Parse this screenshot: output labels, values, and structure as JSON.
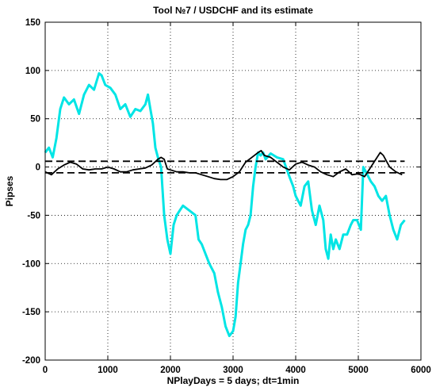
{
  "chart_data": {
    "type": "line",
    "title": "Tool  №7 / USDCHF and its estimate",
    "xlabel": "NPlayDays = 5 days;  dt=1min",
    "ylabel": "Pipses",
    "xlim": [
      0,
      6000
    ],
    "ylim": [
      -200,
      150
    ],
    "xticks": [
      0,
      1000,
      2000,
      3000,
      4000,
      5000,
      6000
    ],
    "yticks": [
      -200,
      -150,
      -100,
      -50,
      0,
      50,
      100,
      150
    ],
    "grid": true,
    "series": [
      {
        "color": "#00e5e5",
        "style": "solid",
        "x": [
          0,
          60,
          120,
          180,
          240,
          300,
          380,
          460,
          540,
          620,
          700,
          780,
          860,
          900,
          960,
          1040,
          1120,
          1200,
          1280,
          1360,
          1440,
          1520,
          1600,
          1640,
          1680,
          1720,
          1760,
          1800,
          1850,
          1900,
          1950,
          2000,
          2050,
          2100,
          2150,
          2200,
          2300,
          2400,
          2450,
          2500,
          2560,
          2620,
          2700,
          2760,
          2820,
          2880,
          2940,
          3000,
          3040,
          3080,
          3120,
          3160,
          3200,
          3240,
          3280,
          3320,
          3360,
          3400,
          3440,
          3480,
          3520,
          3600,
          3700,
          3800,
          3900,
          3960,
          4000,
          4080,
          4140,
          4200,
          4260,
          4320,
          4380,
          4440,
          4480,
          4520,
          4560,
          4600,
          4640,
          4700,
          4760,
          4820,
          4880,
          4920,
          4980,
          5040,
          5080,
          5120,
          5160,
          5200,
          5260,
          5320,
          5380,
          5440,
          5500,
          5560,
          5620,
          5680,
          5740
        ],
        "y": [
          15,
          20,
          10,
          30,
          60,
          72,
          65,
          70,
          55,
          75,
          85,
          80,
          97,
          95,
          85,
          82,
          75,
          60,
          65,
          52,
          60,
          58,
          65,
          75,
          60,
          45,
          20,
          10,
          0,
          -50,
          -75,
          -90,
          -60,
          -50,
          -45,
          -40,
          -45,
          -50,
          -75,
          -80,
          -90,
          -100,
          -110,
          -130,
          -145,
          -165,
          -175,
          -170,
          -155,
          -120,
          -100,
          -80,
          -65,
          -60,
          -50,
          -20,
          0,
          15,
          12,
          15,
          8,
          14,
          10,
          8,
          -10,
          -20,
          -30,
          -40,
          -20,
          -15,
          -45,
          -60,
          -40,
          -55,
          -85,
          -95,
          -70,
          -85,
          -75,
          -85,
          -70,
          -70,
          -60,
          -55,
          -55,
          -65,
          0,
          -5,
          -10,
          -15,
          -20,
          -30,
          -35,
          -30,
          -50,
          -65,
          -75,
          -60,
          -55
        ]
      },
      {
        "color": "#000000",
        "style": "solid",
        "x": [
          0,
          100,
          200,
          300,
          400,
          500,
          600,
          700,
          800,
          900,
          1000,
          1100,
          1200,
          1300,
          1400,
          1500,
          1600,
          1700,
          1800,
          1850,
          1900,
          1950,
          2000,
          2100,
          2200,
          2300,
          2400,
          2500,
          2600,
          2700,
          2800,
          2900,
          3000,
          3100,
          3200,
          3300,
          3400,
          3450,
          3500,
          3600,
          3700,
          3800,
          3900,
          4000,
          4100,
          4200,
          4300,
          4400,
          4500,
          4600,
          4700,
          4800,
          4900,
          5000,
          5100,
          5200,
          5300,
          5350,
          5400,
          5500,
          5600,
          5700
        ],
        "y": [
          -5,
          -8,
          -2,
          2,
          5,
          3,
          -2,
          -3,
          -2,
          -2,
          0,
          -2,
          -5,
          -5,
          -3,
          -2,
          -1,
          2,
          8,
          10,
          8,
          -2,
          -3,
          -5,
          -5,
          -6,
          -6,
          -8,
          -10,
          -12,
          -13,
          -13,
          -10,
          -5,
          5,
          10,
          15,
          17,
          12,
          10,
          5,
          0,
          -3,
          3,
          5,
          2,
          0,
          -5,
          -8,
          -10,
          -5,
          -2,
          -8,
          -7,
          -10,
          0,
          10,
          15,
          12,
          0,
          -5,
          -8
        ]
      },
      {
        "color": "#000000",
        "style": "dashed",
        "x": [
          0,
          5740
        ],
        "y": [
          6,
          6
        ]
      },
      {
        "color": "#000000",
        "style": "dashed",
        "x": [
          0,
          5740
        ],
        "y": [
          -6,
          -6
        ]
      }
    ]
  }
}
